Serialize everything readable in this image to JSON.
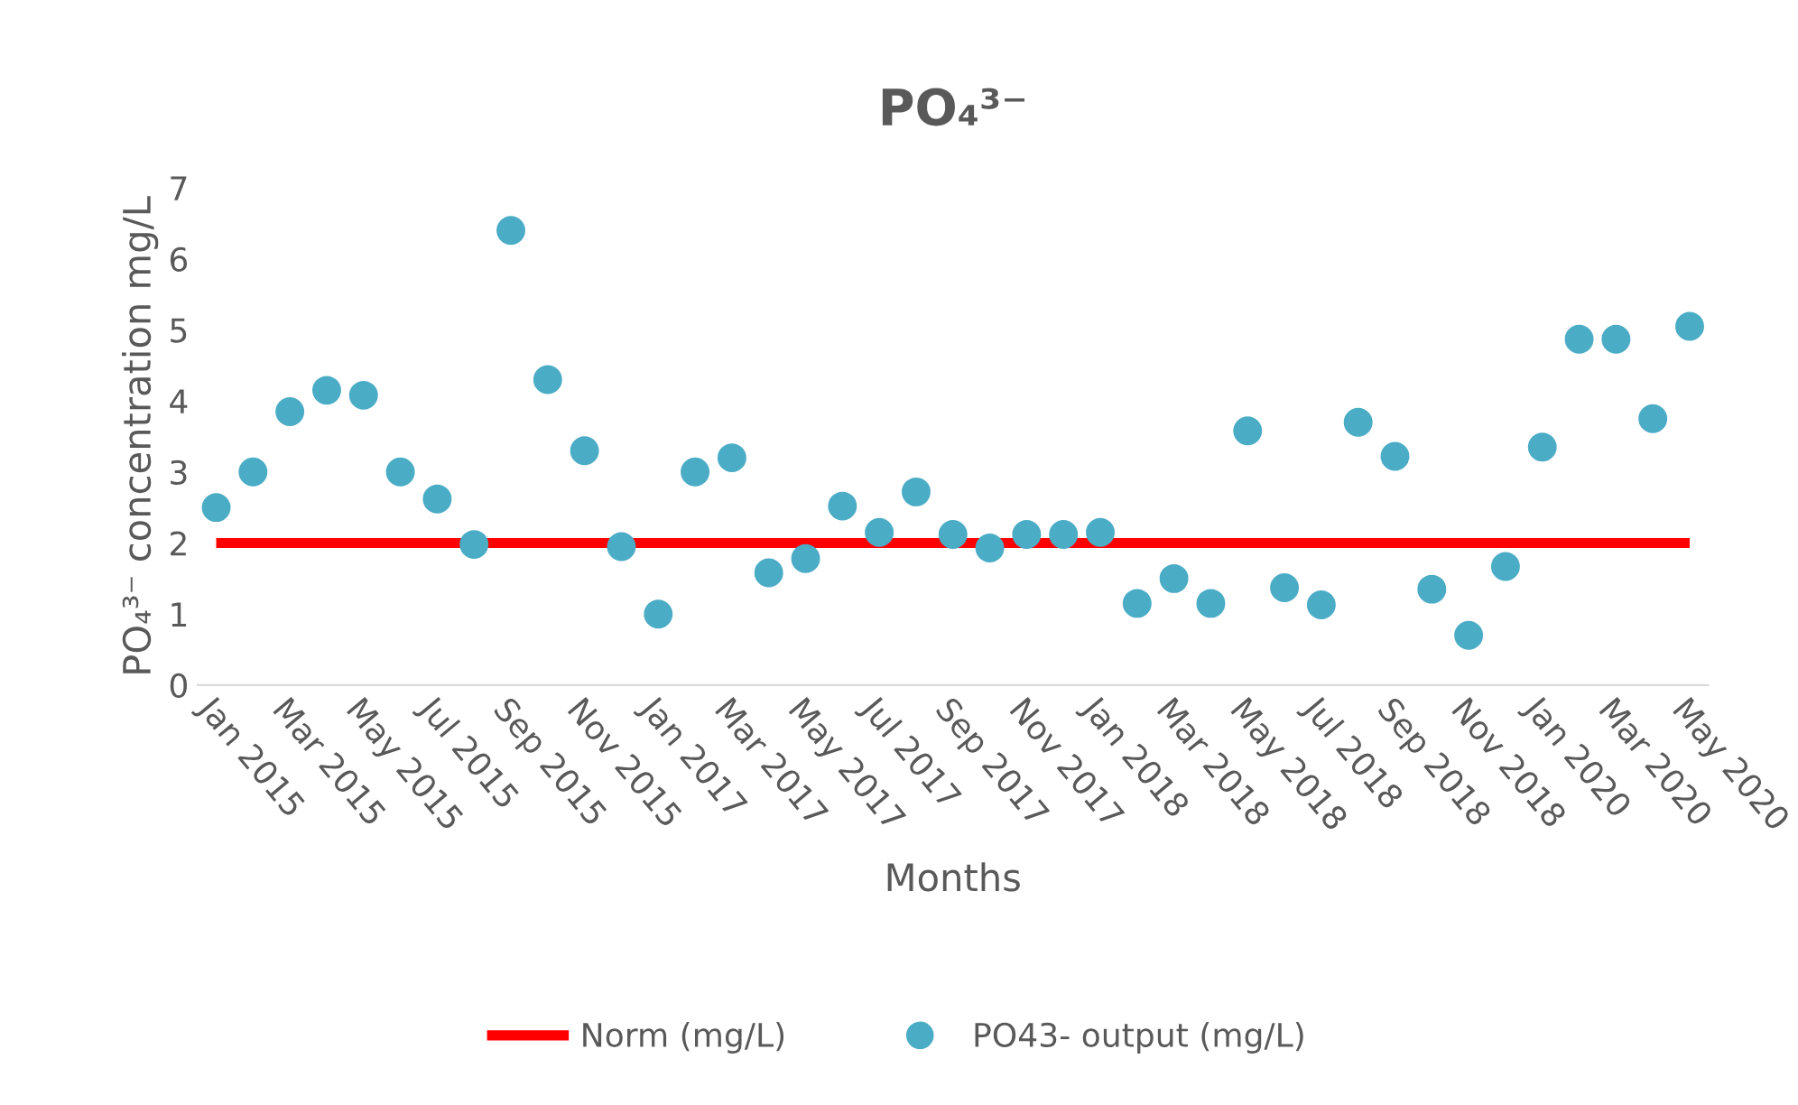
{
  "chart_data": {
    "type": "scatter",
    "title": "PO₄³⁻",
    "xlabel": "Months",
    "ylabel": "PO₄³⁻ concentration mg/L",
    "categories": [
      "Jan 2015",
      null,
      "Mar 2015",
      null,
      "May 2015",
      null,
      "Jul 2015",
      null,
      "Sep 2015",
      null,
      "Nov 2015",
      null,
      "Jan 2017",
      null,
      "Mar 2017",
      null,
      "May 2017",
      null,
      "Jul 2017",
      null,
      "Sep 2017",
      null,
      "Nov 2017",
      null,
      "Jan 2018",
      null,
      "Mar 2018",
      null,
      "May 2018",
      null,
      "Jul 2018",
      null,
      "Sep 2018",
      null,
      "Nov 2018",
      null,
      "Jan 2020",
      null,
      "Mar 2020",
      null,
      "May 2020"
    ],
    "series": [
      {
        "name": "Norm (mg/L)",
        "type": "line",
        "color": "#ff0000",
        "values": [
          2,
          2,
          2,
          2,
          2,
          2,
          2,
          2,
          2,
          2,
          2,
          2,
          2,
          2,
          2,
          2,
          2,
          2,
          2,
          2,
          2,
          2,
          2,
          2,
          2,
          2,
          2,
          2,
          2,
          2,
          2,
          2,
          2,
          2,
          2,
          2,
          2,
          2,
          2,
          2,
          2
        ]
      },
      {
        "name": "PO43- output (mg/L)",
        "marker": "circle",
        "color": "#4bacc6",
        "values": [
          2.5,
          3.0,
          3.85,
          4.15,
          4.08,
          3.0,
          2.62,
          1.98,
          6.4,
          4.3,
          3.3,
          1.95,
          1.0,
          3.0,
          3.2,
          1.58,
          1.78,
          2.52,
          2.15,
          2.72,
          2.12,
          1.93,
          2.12,
          2.12,
          2.15,
          1.15,
          1.5,
          1.15,
          3.58,
          1.37,
          1.13,
          3.7,
          3.22,
          1.35,
          0.7,
          1.67,
          3.35,
          4.87,
          4.87,
          3.75,
          5.05
        ]
      }
    ],
    "ylim": [
      0,
      7
    ],
    "yticks": [
      0,
      1,
      2,
      3,
      4,
      5,
      6,
      7
    ],
    "grid": false,
    "legend": "bottom"
  }
}
